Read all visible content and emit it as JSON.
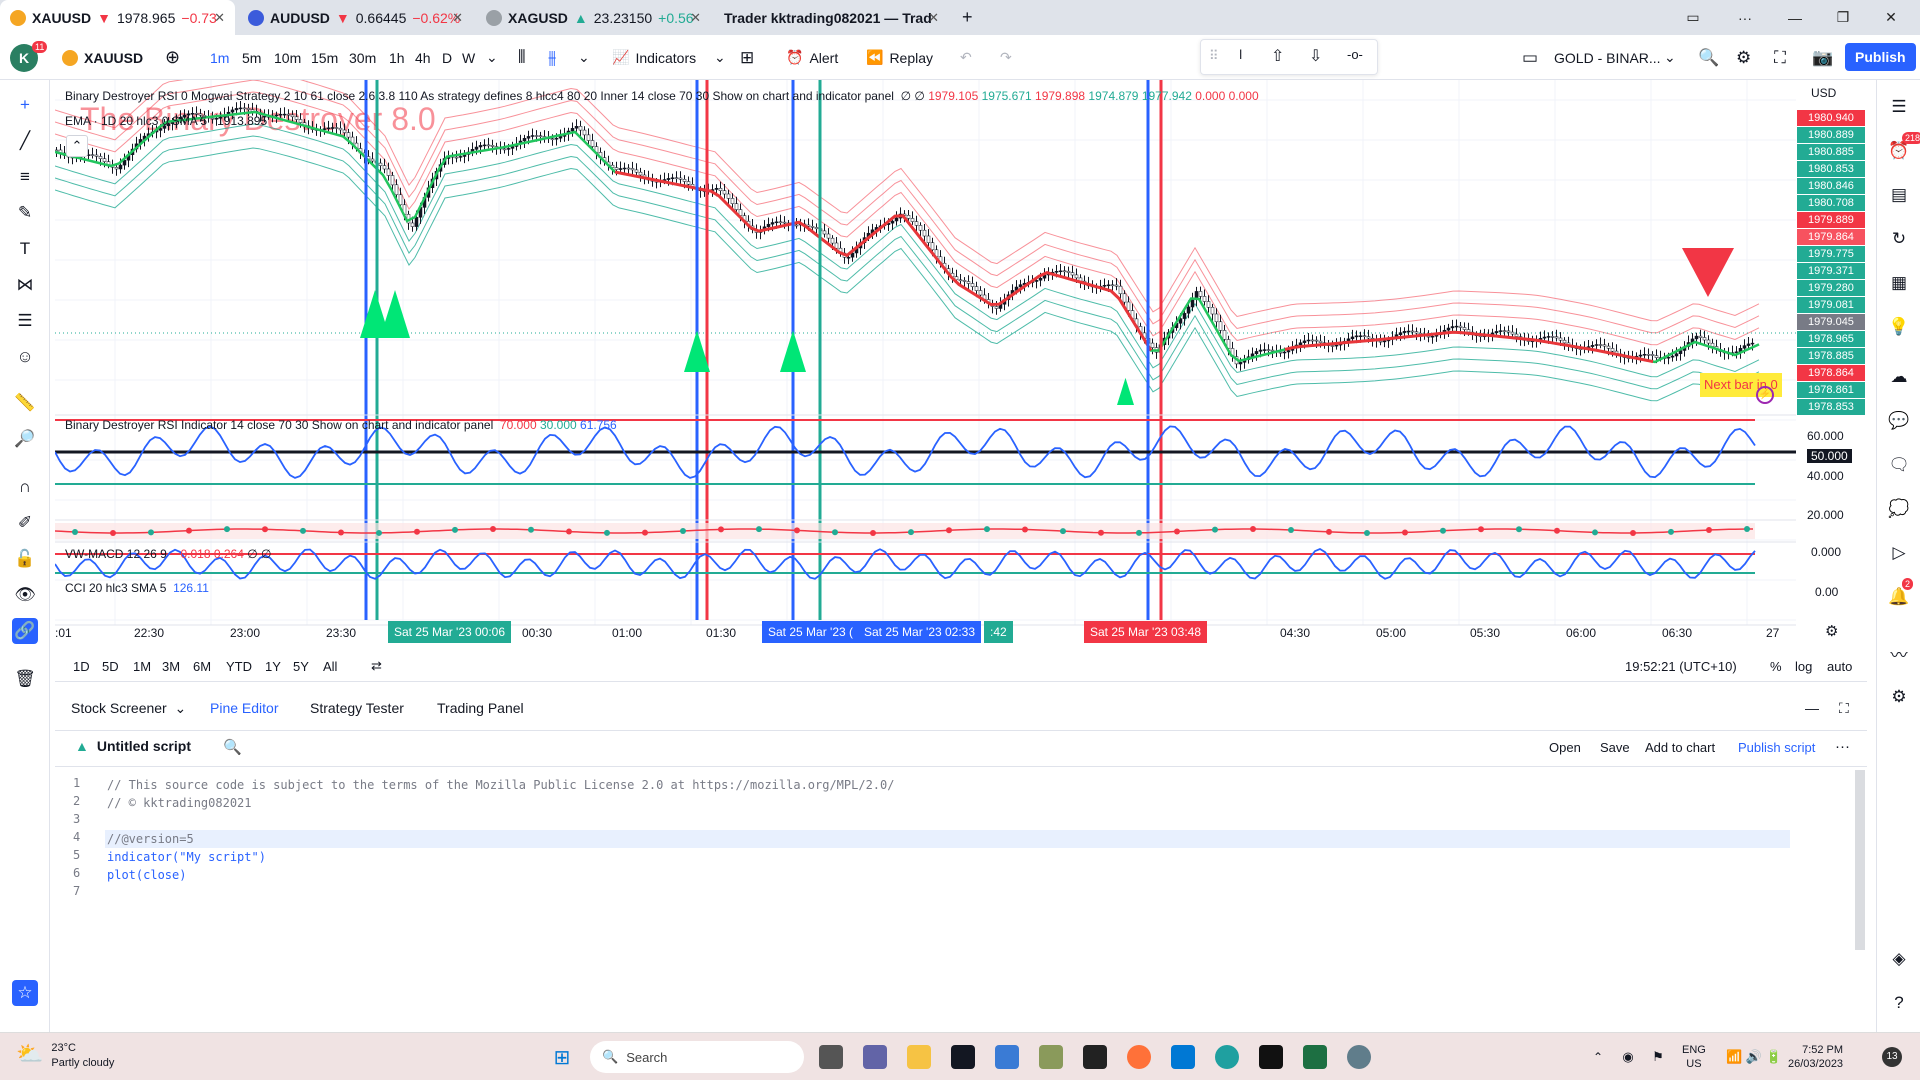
{
  "browser": {
    "tabs": [
      {
        "title": "XAUUSD",
        "price": "1978.965",
        "change": "−0.73"
      },
      {
        "title": "AUDUSD",
        "price": "0.66445",
        "change": "−0.62%"
      },
      {
        "title": "XAGUSD",
        "price": "23.23150",
        "change": "+0.56"
      },
      {
        "title": "Trader kktrading082021 — Trad"
      }
    ],
    "new_tab_label": "+"
  },
  "toolbar": {
    "avatar_letter": "K",
    "avatar_badge": "11",
    "symbol": "XAUUSD",
    "intervals": [
      "1m",
      "5m",
      "10m",
      "15m",
      "30m",
      "1h",
      "4h",
      "D",
      "W"
    ],
    "active_interval": "1m",
    "indicators_label": "Indicators",
    "alert_label": "Alert",
    "replay_label": "Replay",
    "layout_name": "GOLD - BINAR...",
    "publish_label": "Publish"
  },
  "chart": {
    "legend_main": "Binary Destroyer RSI 0 Mogwai Strategy 2 10 61 close 2.6 3.8 110 As strategy defines 8 hlcc4 80 20 Inner 14 close 70 30 Show on chart and indicator panel",
    "legend_main_values": [
      "∅ ∅",
      "1979.105",
      "1975.671",
      "1979.898",
      "1974.879",
      "1977.942",
      "0.000",
      "0.000"
    ],
    "legend_ema": "EMA · 1D 20 hlc3 0 SMA 5",
    "legend_ema_value": "1913.895",
    "watermark": "The Binary Destroyer 8.0",
    "currency": "USD",
    "price_labels": [
      {
        "value": "1980.940",
        "color": "#f23645"
      },
      {
        "value": "1980.889",
        "color": "#22ab94"
      },
      {
        "value": "1980.885",
        "color": "#22ab94"
      },
      {
        "value": "1980.853",
        "color": "#22ab94"
      },
      {
        "value": "1980.846",
        "color": "#22ab94"
      },
      {
        "value": "1980.708",
        "color": "#22ab94"
      },
      {
        "value": "1979.889",
        "color": "#f23645"
      },
      {
        "value": "1979.864",
        "color": "#f7525f"
      },
      {
        "value": "1979.775",
        "color": "#22ab94"
      },
      {
        "value": "1979.371",
        "color": "#22ab94"
      },
      {
        "value": "1979.280",
        "color": "#22ab94"
      },
      {
        "value": "1979.081",
        "color": "#22ab94"
      },
      {
        "value": "1979.045",
        "color": "#787b86"
      },
      {
        "value": "1978.965",
        "color": "#22ab94"
      },
      {
        "value": "1978.885",
        "color": "#22ab94"
      },
      {
        "value": "1978.864",
        "color": "#f23645"
      },
      {
        "value": "1978.861",
        "color": "#22ab94"
      },
      {
        "value": "1978.853",
        "color": "#22ab94"
      }
    ],
    "next_bar_label": "Next bar in 0",
    "rsi_legend": "Binary Destroyer RSI Indicator 14 close 70 30 Show on chart and indicator panel",
    "rsi_values": [
      "70.000",
      "30.000",
      "61.756"
    ],
    "rsi_scale": [
      "60.000",
      "50.000",
      "40.000",
      "20.000"
    ],
    "macd_legend": "VW-MACD 12 26 9",
    "macd_values": [
      "−0.018",
      "0.264",
      "∅ ∅"
    ],
    "macd_scale": "0.000",
    "cci_legend": "CCI 20 hlc3 SMA 5",
    "cci_value": "126.11",
    "cci_scale": "0.00",
    "time_ticks": [
      ":01",
      "22:30",
      "23:00",
      "23:30",
      "00:30",
      "01:00",
      "01:30",
      "04:30",
      "05:00",
      "05:30",
      "06:00",
      "06:30",
      "27"
    ],
    "time_badges": [
      {
        "label": "Sat 25 Mar '23   00:06",
        "color": "#22ab94"
      },
      {
        "label": "Sat 25 Mar '23  (",
        "color": "#2962ff"
      },
      {
        "label": "Sat 25 Mar '23   02:33",
        "color": "#2962ff"
      },
      {
        "label": ":42",
        "color": "#22ab94"
      },
      {
        "label": "Sat 25 Mar '23   03:48",
        "color": "#f23645"
      }
    ]
  },
  "range_bar": {
    "ranges": [
      "1D",
      "5D",
      "1M",
      "3M",
      "6M",
      "YTD",
      "1Y",
      "5Y",
      "All"
    ],
    "clock": "19:52:21 (UTC+10)",
    "percent": "%",
    "log": "log",
    "auto": "auto"
  },
  "panel": {
    "tabs": [
      "Stock Screener",
      "Pine Editor",
      "Strategy Tester",
      "Trading Panel"
    ],
    "active_tab": "Pine Editor",
    "script_title": "Untitled script",
    "actions": [
      "Open",
      "Save",
      "Add to chart",
      "Publish script"
    ],
    "code_lines": [
      {
        "n": "1",
        "text": "// This source code is subject to the terms of the Mozilla Public License 2.0 at https://mozilla.org/MPL/2.0/"
      },
      {
        "n": "2",
        "text": "// © kktrading082021"
      },
      {
        "n": "3",
        "text": ""
      },
      {
        "n": "4",
        "text": "//@version=5"
      },
      {
        "n": "5",
        "text": "indicator(\"My script\")"
      },
      {
        "n": "6",
        "text": "plot(close)"
      },
      {
        "n": "7",
        "text": ""
      }
    ]
  },
  "taskbar": {
    "weather_temp": "23°C",
    "weather_desc": "Partly cloudy",
    "search_placeholder": "Search",
    "lang": "ENG",
    "region": "US",
    "time": "7:52 PM",
    "date": "26/03/2023",
    "notif_count": "13"
  }
}
